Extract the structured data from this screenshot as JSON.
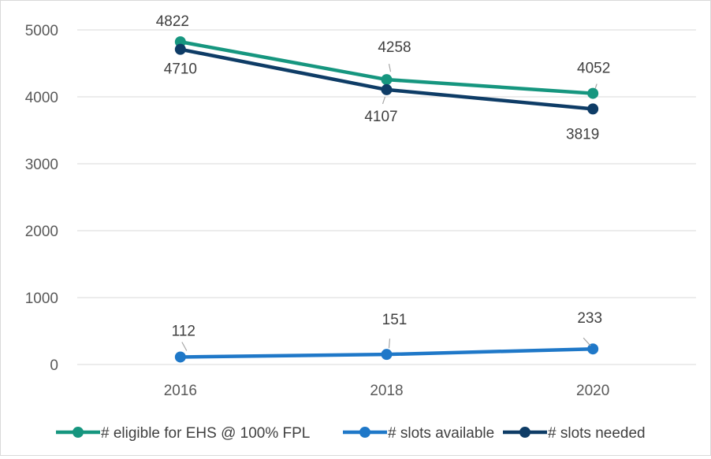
{
  "chart_data": {
    "type": "line",
    "title": "",
    "xlabel": "",
    "ylabel": "",
    "categories": [
      "2016",
      "2018",
      "2020"
    ],
    "ylim": [
      0,
      5000
    ],
    "yticks": [
      "0",
      "1000",
      "2000",
      "3000",
      "4000",
      "5000"
    ],
    "grid": true,
    "legend_position": "bottom",
    "series": [
      {
        "name": "# eligible for EHS @ 100% FPL",
        "color": "#16967f",
        "values": [
          4822,
          4258,
          4052
        ],
        "labels": [
          "4822",
          "4258",
          "4052"
        ]
      },
      {
        "name": "# slots available",
        "color": "#1f78c8",
        "values": [
          112,
          151,
          233
        ],
        "labels": [
          "112",
          "151",
          "233"
        ]
      },
      {
        "name": "# slots needed",
        "color": "#0e3c66",
        "values": [
          4710,
          4107,
          3819
        ],
        "labels": [
          "4710",
          "4107",
          "3819"
        ]
      }
    ]
  }
}
